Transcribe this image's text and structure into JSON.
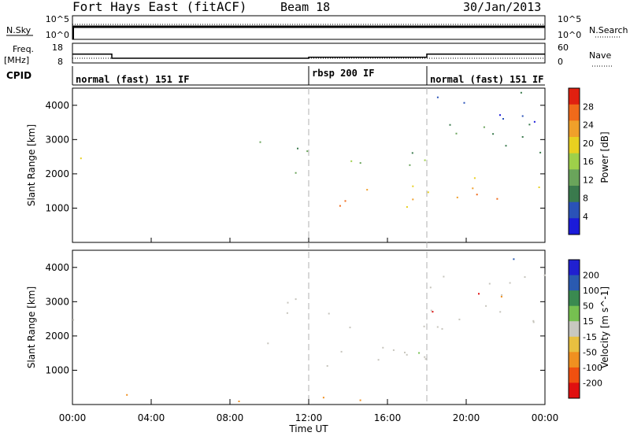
{
  "header": {
    "station": "Fort Hays East (fitACF)",
    "beam": "Beam 18",
    "date": "30/Jan/2013"
  },
  "top_panels": {
    "nsky": {
      "label": "N.Sky",
      "ticks": [
        "10^5",
        "10^0"
      ]
    },
    "nsearch": {
      "label": "N.Search",
      "ticks": [
        "10^5",
        "10^0"
      ]
    },
    "freq": {
      "label": "Freq.",
      "unit": "[MHz]",
      "ticks": [
        "18",
        "8"
      ]
    },
    "nave": {
      "label": "Nave",
      "ticks": [
        "60",
        "0"
      ]
    },
    "cpid": {
      "label": "CPID",
      "segments": [
        {
          "name": "normal (fast) 151 IF",
          "start_h": 0,
          "end_h": 12
        },
        {
          "name": "rbsp 200 IF",
          "start_h": 12,
          "end_h": 18
        },
        {
          "name": "normal (fast) 151 IF",
          "start_h": 18,
          "end_h": 24
        }
      ]
    },
    "freq_steps": [
      {
        "start_h": 0,
        "end_h": 2,
        "mhz": 12.5
      },
      {
        "start_h": 2,
        "end_h": 12,
        "mhz": 10.4
      },
      {
        "start_h": 12,
        "end_h": 18,
        "mhz": 10.9
      },
      {
        "start_h": 18,
        "end_h": 24,
        "mhz": 12.5
      }
    ]
  },
  "chart_data": [
    {
      "type": "heatmap",
      "name": "power",
      "ylabel": "Slant Range [km]",
      "xlabel": "Time UT",
      "xlim": [
        0,
        24
      ],
      "ylim": [
        0,
        4500
      ],
      "x_ticks": [
        "00:00",
        "04:00",
        "08:00",
        "12:00",
        "16:00",
        "20:00",
        "00:00"
      ],
      "y_ticks": [
        "1000",
        "2000",
        "3000",
        "4000"
      ],
      "colorbar": {
        "label": "Power [dB]",
        "ticks": [
          "4",
          "8",
          "12",
          "16",
          "20",
          "24",
          "28"
        ],
        "range": [
          0,
          32
        ]
      },
      "regions": [
        {
          "t": [
            0.0,
            0.6
          ],
          "r": [
            2200,
            3100
          ],
          "level": 18
        },
        {
          "t": [
            9.0,
            11.9
          ],
          "r": [
            1800,
            3100
          ],
          "level": 10
        },
        {
          "t": [
            12.2,
            18.0
          ],
          "r": [
            900,
            1800
          ],
          "level": 24
        },
        {
          "t": [
            13.0,
            18.0
          ],
          "r": [
            2000,
            2900
          ],
          "level": 13
        },
        {
          "t": [
            18.0,
            24.0
          ],
          "r": [
            1200,
            2200
          ],
          "level": 23
        },
        {
          "t": [
            18.0,
            24.0
          ],
          "r": [
            2200,
            4400
          ],
          "level": 8
        }
      ]
    },
    {
      "type": "heatmap",
      "name": "velocity",
      "ylabel": "Slant Range [km]",
      "xlabel": "Time UT",
      "xlim": [
        0,
        24
      ],
      "ylim": [
        0,
        4500
      ],
      "x_ticks": [
        "00:00",
        "04:00",
        "08:00",
        "12:00",
        "16:00",
        "20:00",
        "00:00"
      ],
      "y_ticks": [
        "1000",
        "2000",
        "3000",
        "4000"
      ],
      "colorbar": {
        "label": "Velocity [m s^-1]",
        "ticks": [
          "200",
          "100",
          "50",
          "15",
          "-15",
          "-50",
          "-100",
          "-200"
        ]
      },
      "regions": [
        {
          "t": [
            0.0,
            0.6
          ],
          "r": [
            2200,
            3100
          ],
          "level": 0
        },
        {
          "t": [
            9.0,
            11.9
          ],
          "r": [
            1800,
            3100
          ],
          "level": 0
        },
        {
          "t": [
            12.2,
            18.0
          ],
          "r": [
            900,
            2900
          ],
          "level": 0
        },
        {
          "t": [
            18.0,
            24.0
          ],
          "r": [
            1600,
            4400
          ],
          "level": 0
        },
        {
          "t": [
            1.0,
            16.0
          ],
          "r": [
            100,
            350
          ],
          "level": -60
        }
      ]
    }
  ],
  "colors": {
    "power_scale": [
      "#1b1bd9",
      "#2a52b8",
      "#3a7a4d",
      "#6aa45b",
      "#9ed04a",
      "#e8d020",
      "#f0a02a",
      "#f06a1a",
      "#e02010"
    ],
    "velocity_scale": [
      "#2020d0",
      "#2a5ab0",
      "#3a8a50",
      "#76c050",
      "#c8c8c0",
      "#e8c040",
      "#f09020",
      "#f05010",
      "#e01010"
    ],
    "grey_scatter": "#c6c4bc",
    "dash_line": "#b0b0b0"
  }
}
